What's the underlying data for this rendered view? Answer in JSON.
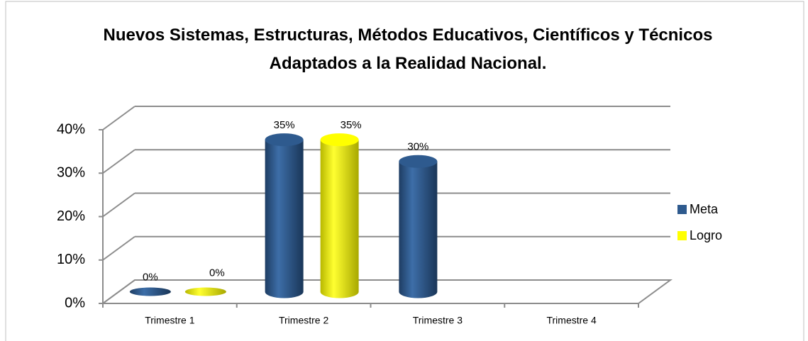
{
  "chart_data": {
    "type": "bar3d",
    "title": "Nuevos Sistemas, Estructuras, Métodos Educativos, Científicos y Técnicos Adaptados a la Realidad Nacional.",
    "categories": [
      "Trimestre 1",
      "Trimestre 2",
      "Trimestre 3",
      "Trimestre 4"
    ],
    "series": [
      {
        "name": "Meta",
        "color": "#2e5a8e",
        "values": [
          0,
          35,
          30,
          null
        ],
        "value_labels": [
          "0%",
          "35%",
          "30%",
          null
        ]
      },
      {
        "name": "Logro",
        "color": "#ffff00",
        "values": [
          0,
          35,
          null,
          null
        ],
        "value_labels": [
          "0%",
          "35%",
          null,
          null
        ]
      }
    ],
    "ylim": [
      0,
      40
    ],
    "yticks": [
      {
        "value": 0,
        "label": "0%"
      },
      {
        "value": 10,
        "label": "10%"
      },
      {
        "value": 20,
        "label": "20%"
      },
      {
        "value": 30,
        "label": "30%"
      },
      {
        "value": 40,
        "label": "40%"
      }
    ],
    "grid": true,
    "legend": "right"
  }
}
